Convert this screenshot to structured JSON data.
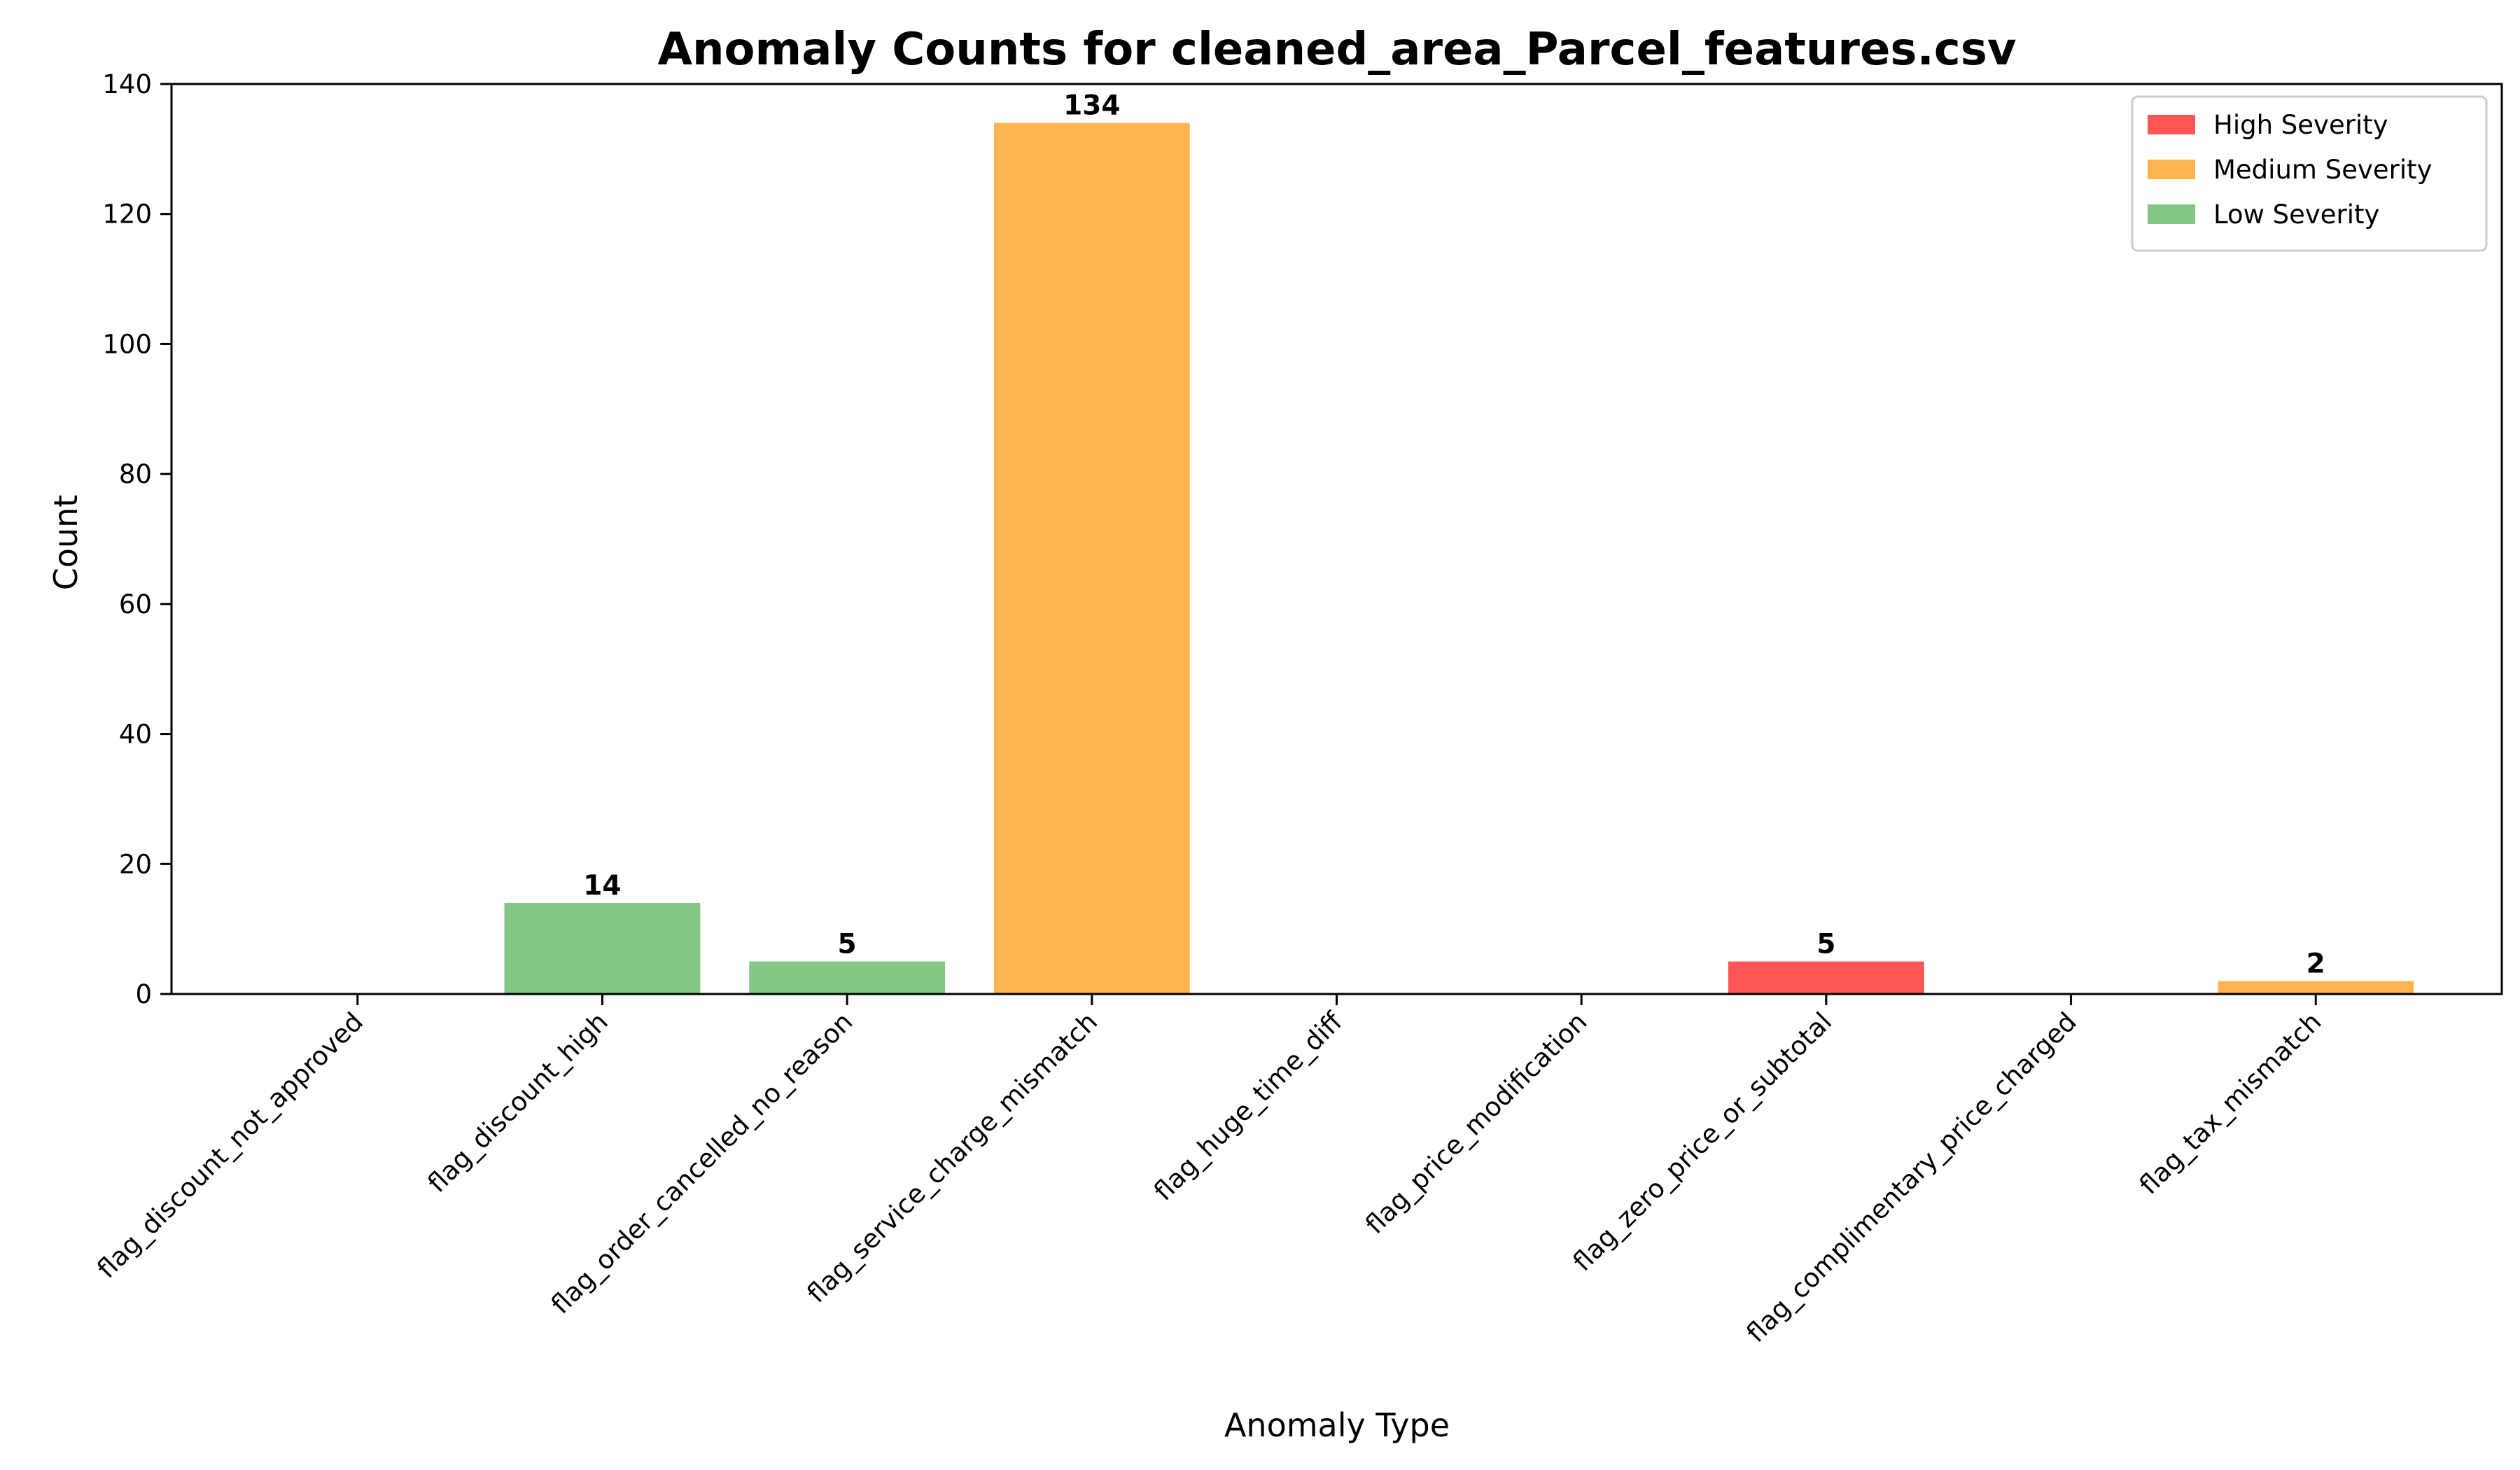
{
  "chart_data": {
    "type": "bar",
    "title": "Anomaly Counts for cleaned_area_Parcel_features.csv",
    "xlabel": "Anomaly Type",
    "ylabel": "Count",
    "ylim": [
      0,
      140
    ],
    "yticks": [
      0,
      20,
      40,
      60,
      80,
      100,
      120,
      140
    ],
    "grid": false,
    "legend_position": "top-right",
    "categories": [
      "flag_discount_not_approved",
      "flag_discount_high",
      "flag_order_cancelled_no_reason",
      "flag_service_charge_mismatch",
      "flag_huge_time_diff",
      "flag_price_modification",
      "flag_zero_price_or_subtotal",
      "flag_complimentary_price_charged",
      "flag_tax_mismatch"
    ],
    "values": [
      0,
      14,
      5,
      134,
      0,
      0,
      5,
      0,
      2
    ],
    "severity": [
      "high",
      "low",
      "low",
      "medium",
      "high",
      "medium",
      "high",
      "high",
      "medium"
    ],
    "legend": [
      {
        "key": "high",
        "label": "High Severity",
        "color": "#ff5555"
      },
      {
        "key": "medium",
        "label": "Medium Severity",
        "color": "#ffb44f"
      },
      {
        "key": "low",
        "label": "Low Severity",
        "color": "#82c884"
      }
    ]
  }
}
